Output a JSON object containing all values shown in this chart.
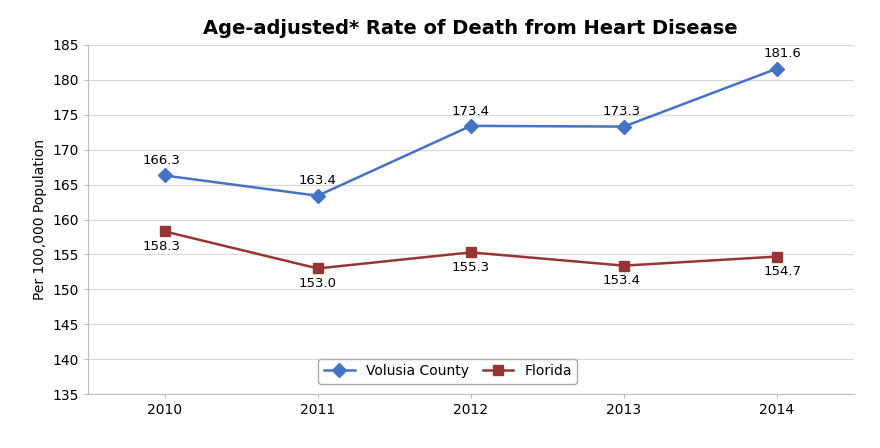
{
  "title": "Age-adjusted* Rate of Death from Heart Disease",
  "ylabel": "Per 100,000 Population",
  "xlabel": "",
  "years": [
    2010,
    2011,
    2012,
    2013,
    2014
  ],
  "volusia": [
    166.3,
    163.4,
    173.4,
    173.3,
    181.6
  ],
  "florida": [
    158.3,
    153.0,
    155.3,
    153.4,
    154.7
  ],
  "volusia_color": "#4472C4",
  "florida_color": "#963634",
  "ylim": [
    135,
    185
  ],
  "yticks": [
    135,
    140,
    145,
    150,
    155,
    160,
    165,
    170,
    175,
    180,
    185
  ],
  "bg_color": "#FFFFFF",
  "plot_bg_color": "#FFFFFF",
  "grid_color": "#D8D8D8",
  "title_fontsize": 14,
  "label_fontsize": 10,
  "tick_fontsize": 10,
  "annotation_fontsize": 9.5,
  "legend_labels": [
    "Volusia County",
    "Florida"
  ],
  "marker_volusia": "D",
  "marker_florida": "s",
  "volusia_annotations_above": [
    true,
    true,
    true,
    true,
    true
  ],
  "florida_annotations_below": [
    true,
    true,
    true,
    true,
    true
  ]
}
